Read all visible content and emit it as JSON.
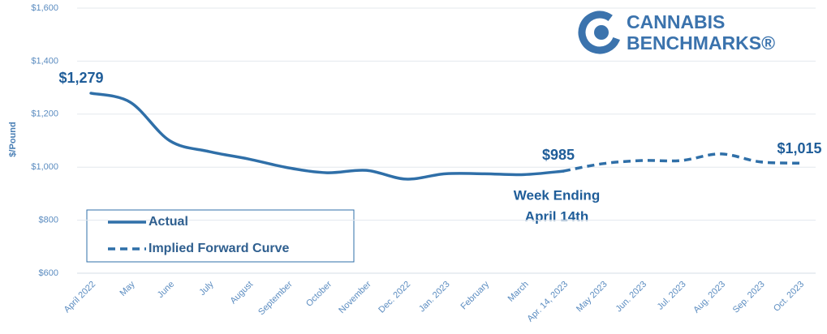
{
  "chart_data": {
    "type": "line",
    "y_label": "$/Pound",
    "categories": [
      "April 2022",
      "May",
      "June",
      "July",
      "August",
      "September",
      "October",
      "November",
      "Dec. 2022",
      "Jan. 2023",
      "February",
      "March",
      "Apr. 14, 2023",
      "May 2023",
      "Jun. 2023",
      "Jul. 2023",
      "Aug. 2023",
      "Sep. 2023",
      "Oct. 2023"
    ],
    "series": [
      {
        "name": "Actual",
        "color": "#2f6fa8",
        "dash": false,
        "values": [
          1279,
          1245,
          1100,
          1059,
          1031,
          998,
          979,
          988,
          955,
          975,
          975,
          972,
          985,
          null,
          null,
          null,
          null,
          null,
          null
        ],
        "value_labels": [
          "$1,279",
          null,
          null,
          null,
          null,
          null,
          null,
          null,
          null,
          null,
          null,
          null,
          "$985",
          null,
          null,
          null,
          null,
          null,
          null
        ]
      },
      {
        "name": "Implied Forward Curve",
        "color": "#2f6fa8",
        "dash": true,
        "values": [
          null,
          null,
          null,
          null,
          null,
          null,
          null,
          null,
          null,
          null,
          null,
          null,
          985,
          1013,
          1025,
          1025,
          1050,
          1020,
          1015
        ],
        "value_labels": [
          null,
          null,
          null,
          null,
          null,
          null,
          null,
          null,
          null,
          null,
          null,
          null,
          null,
          null,
          null,
          null,
          null,
          null,
          "$1,015"
        ]
      }
    ],
    "annotation": [
      "Week Ending",
      "April 14th"
    ],
    "logo": [
      "CANNABIS",
      "BENCHMARKS®"
    ],
    "ylim": [
      600,
      1600
    ],
    "yticks": [
      {
        "value": 600,
        "label": "$600"
      },
      {
        "value": 800,
        "label": "$800"
      },
      {
        "value": 1000,
        "label": "$1,000"
      },
      {
        "value": 1200,
        "label": "$1,200"
      },
      {
        "value": 1400,
        "label": "$1,400"
      },
      {
        "value": 1600,
        "label": "$1,600"
      }
    ],
    "grid": true
  }
}
